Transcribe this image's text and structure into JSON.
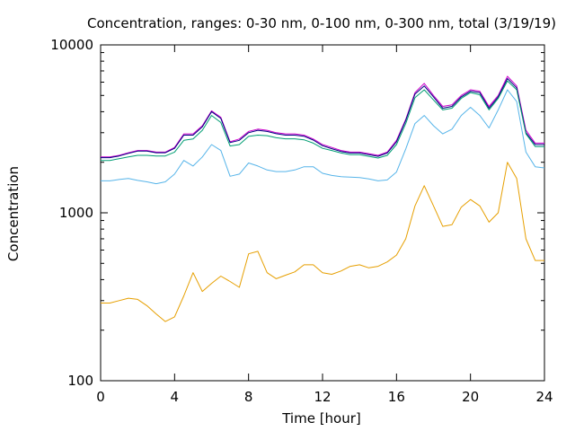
{
  "chart_data": {
    "type": "line",
    "title": "Concentration, ranges: 0-30 nm, 0-100 nm, 0-300 nm, total (3/19/19)",
    "xlabel": "Time [hour]",
    "ylabel": "Concentration",
    "xlim": [
      0,
      24
    ],
    "ylim": [
      100,
      10000
    ],
    "yscale": "log",
    "grid": false,
    "legend": "none",
    "x_ticks": [
      "0",
      "4",
      "8",
      "12",
      "16",
      "20",
      "24"
    ],
    "x_tick_values": [
      0,
      4,
      8,
      12,
      16,
      20,
      24
    ],
    "y_ticks": [
      "100",
      "1000",
      "10000"
    ],
    "y_tick_values": [
      100,
      1000,
      10000
    ],
    "x": [
      0,
      0.5,
      1,
      1.5,
      2,
      2.5,
      3,
      3.5,
      4,
      4.5,
      5,
      5.5,
      6,
      6.5,
      7,
      7.5,
      8,
      8.5,
      9,
      9.5,
      10,
      10.5,
      11,
      11.5,
      12,
      12.5,
      13,
      13.5,
      14,
      14.5,
      15,
      15.5,
      16,
      16.5,
      17,
      17.5,
      18,
      18.5,
      19,
      19.5,
      20,
      20.5,
      21,
      21.5,
      22,
      22.5,
      23,
      23.5,
      24
    ],
    "series": [
      {
        "color": "#cc00cc",
        "values": [
          2150,
          2150,
          2200,
          2280,
          2350,
          2350,
          2300,
          2300,
          2450,
          2950,
          2950,
          3300,
          4050,
          3700,
          2650,
          2750,
          3050,
          3150,
          3100,
          3000,
          2950,
          2950,
          2900,
          2750,
          2550,
          2450,
          2350,
          2300,
          2300,
          2250,
          2200,
          2300,
          2700,
          3600,
          5200,
          5900,
          5000,
          4300,
          4400,
          5000,
          5400,
          5300,
          4300,
          5000,
          6500,
          5700,
          3100,
          2600,
          2600
        ]
      },
      {
        "color": "#000080",
        "values": [
          2130,
          2130,
          2180,
          2260,
          2330,
          2330,
          2280,
          2280,
          2420,
          2900,
          2900,
          3250,
          4000,
          3650,
          2620,
          2700,
          3000,
          3100,
          3050,
          2960,
          2900,
          2900,
          2860,
          2710,
          2510,
          2410,
          2320,
          2270,
          2270,
          2220,
          2170,
          2270,
          2650,
          3550,
          5100,
          5700,
          4900,
          4200,
          4300,
          4900,
          5300,
          5200,
          4200,
          4900,
          6300,
          5550,
          3000,
          2550,
          2550
        ]
      },
      {
        "color": "#009e73",
        "values": [
          2050,
          2050,
          2100,
          2150,
          2200,
          2200,
          2180,
          2180,
          2300,
          2700,
          2750,
          3100,
          3800,
          3450,
          2500,
          2550,
          2850,
          2900,
          2880,
          2800,
          2760,
          2760,
          2720,
          2600,
          2420,
          2350,
          2270,
          2220,
          2220,
          2170,
          2120,
          2200,
          2550,
          3400,
          4850,
          5400,
          4700,
          4100,
          4200,
          4800,
          5200,
          5050,
          4100,
          4800,
          6100,
          5400,
          2950,
          2480,
          2480
        ]
      },
      {
        "color": "#56b4e9",
        "values": [
          1550,
          1550,
          1580,
          1600,
          1560,
          1530,
          1490,
          1530,
          1700,
          2050,
          1900,
          2150,
          2550,
          2350,
          1650,
          1700,
          1980,
          1900,
          1800,
          1760,
          1760,
          1800,
          1880,
          1880,
          1720,
          1670,
          1640,
          1630,
          1620,
          1590,
          1550,
          1570,
          1750,
          2400,
          3400,
          3800,
          3300,
          2950,
          3150,
          3800,
          4250,
          3800,
          3200,
          4100,
          5400,
          4600,
          2300,
          1880,
          1850
        ]
      },
      {
        "color": "#e69f00",
        "values": [
          290,
          290,
          300,
          310,
          305,
          280,
          250,
          225,
          240,
          320,
          440,
          340,
          380,
          420,
          390,
          360,
          570,
          590,
          440,
          405,
          425,
          445,
          490,
          490,
          440,
          430,
          450,
          480,
          490,
          470,
          480,
          510,
          560,
          700,
          1100,
          1450,
          1100,
          830,
          850,
          1080,
          1200,
          1100,
          880,
          1000,
          2000,
          1600,
          700,
          520,
          520
        ]
      }
    ]
  }
}
